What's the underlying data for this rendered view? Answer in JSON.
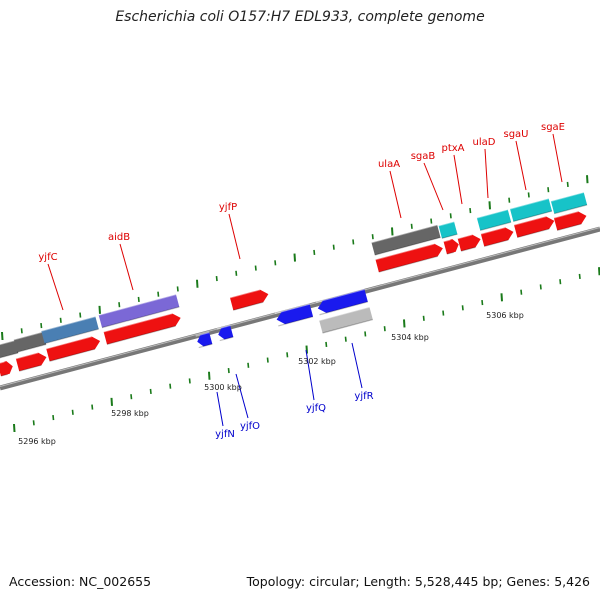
{
  "title": "Escherichia coli O157:H7 EDL933, complete genome",
  "footer": {
    "accession": "Accession: NC_002655",
    "stats": "Topology: circular; Length: 5,528,445 bp; Genes: 5,426"
  },
  "colors": {
    "red_gene": "#ee1111",
    "blue_gene": "#1a1aee",
    "grey_gene": "#666666",
    "lightgrey_gene": "#bbbbbb",
    "steelblue_gene": "#4a7fb3",
    "slateblue_gene": "#7b68d6",
    "cyan_gene": "#17c3c8",
    "tick_green": "#1a7a1a",
    "label_red": "#dd0000",
    "label_blue": "#0000cc"
  },
  "scale_labels": [
    {
      "text": "5296 kbp"
    },
    {
      "text": "5298 kbp"
    },
    {
      "text": "5300 kbp"
    },
    {
      "text": "5302 kbp"
    },
    {
      "text": "5304 kbp"
    },
    {
      "text": "5306 kbp"
    }
  ],
  "gene_labels_top": [
    {
      "text": "yjfC"
    },
    {
      "text": "aidB"
    },
    {
      "text": "yjfP"
    },
    {
      "text": "ulaA"
    },
    {
      "text": "sgaB"
    },
    {
      "text": "ptxA"
    },
    {
      "text": "ulaD"
    },
    {
      "text": "sgaU"
    },
    {
      "text": "sgaE"
    }
  ],
  "gene_labels_bottom": [
    {
      "text": "yjfN"
    },
    {
      "text": "yjfO"
    },
    {
      "text": "yjfQ"
    },
    {
      "text": "yjfR"
    }
  ]
}
